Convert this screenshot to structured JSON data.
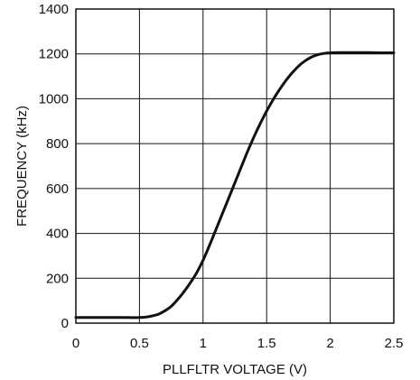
{
  "chart_data": {
    "type": "line",
    "xlabel": "PLLFLTR VOLTAGE (V)",
    "ylabel": "FREQUENCY (kHz)",
    "xlim": [
      0,
      2.5
    ],
    "ylim": [
      0,
      1400
    ],
    "grid": true,
    "x_ticks": [
      "0",
      "0.5",
      "1",
      "1.5",
      "2",
      "2.5"
    ],
    "y_ticks": [
      "0",
      "200",
      "400",
      "600",
      "800",
      "1000",
      "1200",
      "1400"
    ],
    "series": [
      {
        "points": [
          [
            0.0,
            25
          ],
          [
            0.2,
            25
          ],
          [
            0.4,
            25
          ],
          [
            0.5,
            25
          ],
          [
            0.55,
            27
          ],
          [
            0.6,
            32
          ],
          [
            0.65,
            40
          ],
          [
            0.7,
            55
          ],
          [
            0.75,
            75
          ],
          [
            0.8,
            105
          ],
          [
            0.85,
            140
          ],
          [
            0.9,
            180
          ],
          [
            0.95,
            225
          ],
          [
            1.0,
            280
          ],
          [
            1.05,
            345
          ],
          [
            1.1,
            415
          ],
          [
            1.15,
            485
          ],
          [
            1.2,
            555
          ],
          [
            1.25,
            625
          ],
          [
            1.3,
            695
          ],
          [
            1.35,
            765
          ],
          [
            1.4,
            830
          ],
          [
            1.45,
            890
          ],
          [
            1.5,
            945
          ],
          [
            1.55,
            995
          ],
          [
            1.6,
            1040
          ],
          [
            1.65,
            1080
          ],
          [
            1.7,
            1115
          ],
          [
            1.75,
            1145
          ],
          [
            1.8,
            1168
          ],
          [
            1.85,
            1185
          ],
          [
            1.9,
            1196
          ],
          [
            1.95,
            1202
          ],
          [
            2.0,
            1205
          ],
          [
            2.1,
            1206
          ],
          [
            2.2,
            1206
          ],
          [
            2.3,
            1206
          ],
          [
            2.4,
            1205
          ],
          [
            2.5,
            1205
          ]
        ]
      }
    ]
  }
}
